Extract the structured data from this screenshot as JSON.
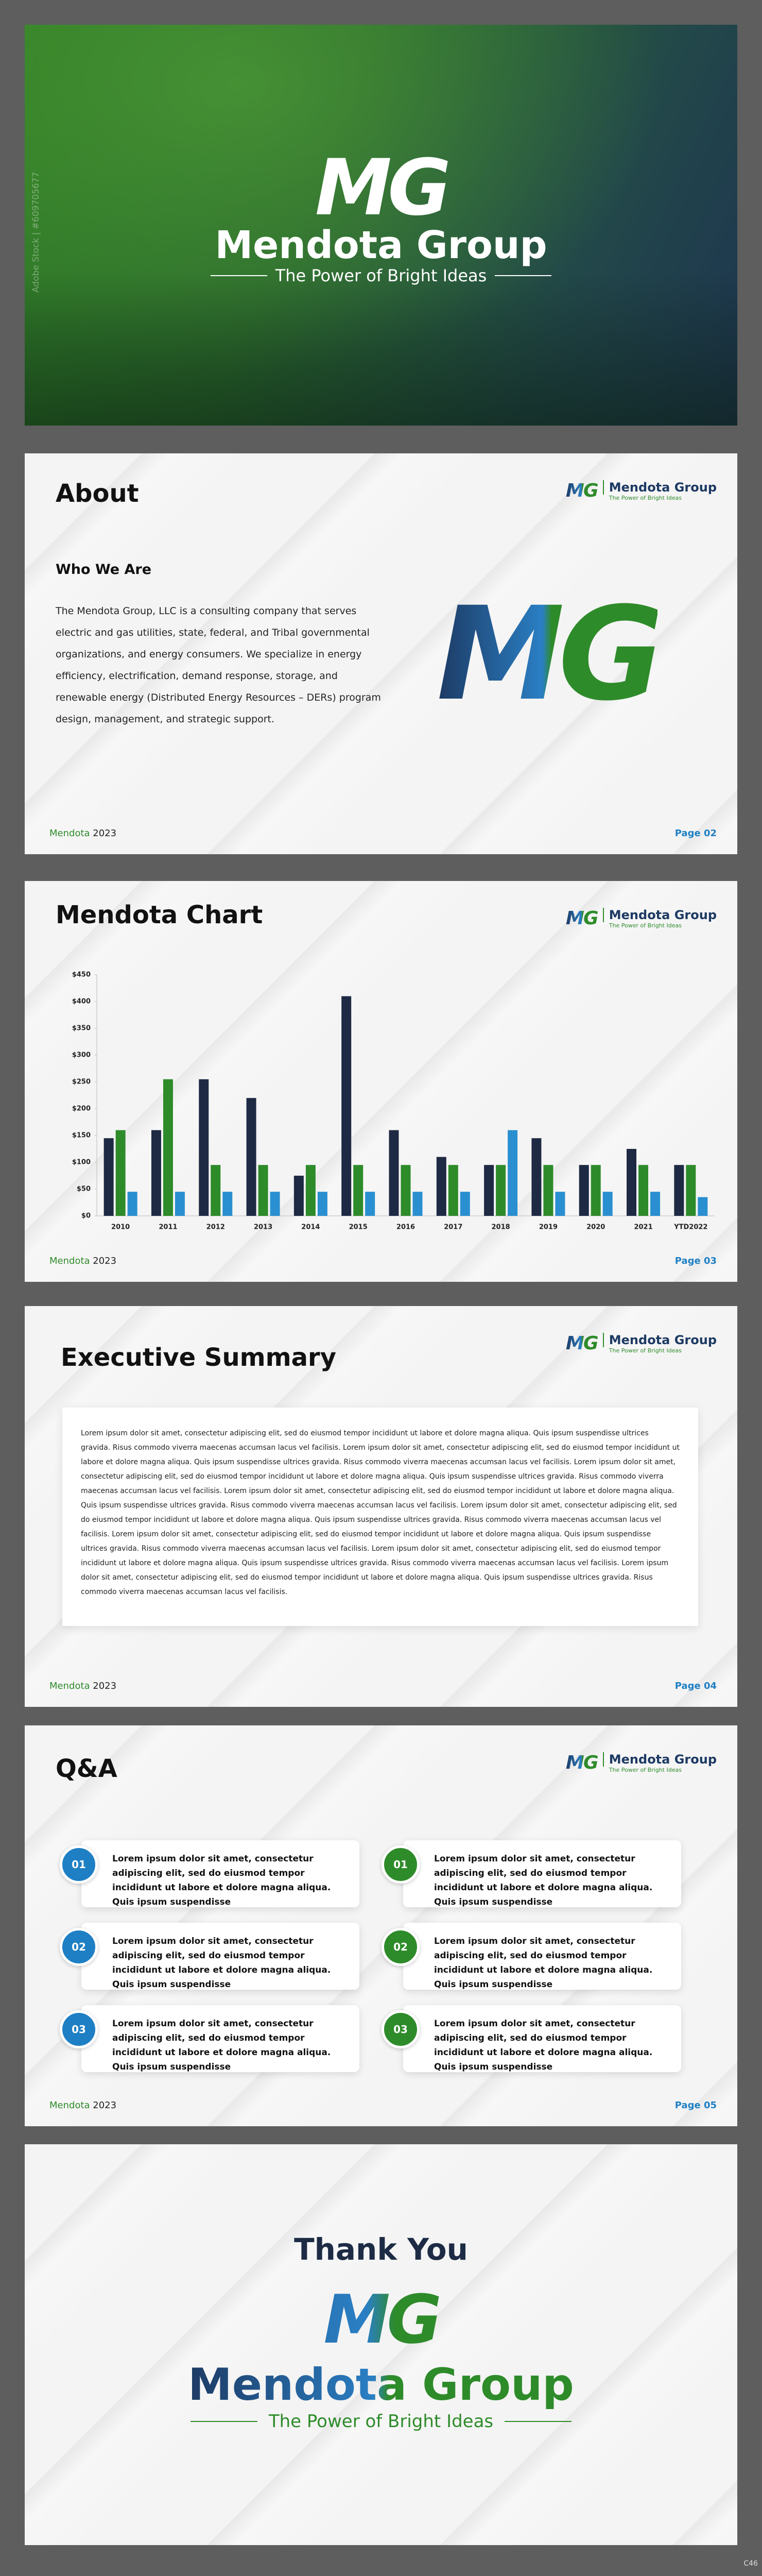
{
  "cover": {
    "logo": "MG",
    "title": "Mendota Group",
    "tagline": "The Power of Bright Ideas",
    "watermark": "Adobe Stock | #609705677"
  },
  "header_logo": {
    "logo": "MG",
    "name": "Mendota Group",
    "tagline": "The Power of Bright Ideas"
  },
  "footer": {
    "brand": "Mendota",
    "year": "2023"
  },
  "about": {
    "title": "About",
    "subtitle": "Who We Are",
    "body": "The Mendota Group, LLC is a consulting company that serves electric and gas utilities, state, federal, and Tribal governmental organizations, and energy consumers.  We specialize in energy efficiency, electrification, demand response, storage, and renewable energy (Distributed Energy Resources – DERs) program design, management, and strategic support.",
    "logo": "MG",
    "page": "Page 02"
  },
  "chart_slide": {
    "title": "Mendota Chart",
    "page": "Page 03"
  },
  "chart_data": {
    "type": "bar",
    "categories": [
      "2010",
      "2011",
      "2012",
      "2013",
      "2014",
      "2015",
      "2016",
      "2017",
      "2018",
      "2019",
      "2020",
      "2021",
      "YTD2022"
    ],
    "series": [
      {
        "color": "#1e2a44",
        "values": [
          145,
          160,
          255,
          220,
          75,
          410,
          160,
          110,
          95,
          145,
          95,
          125,
          95
        ]
      },
      {
        "color": "#2e8b2a",
        "values": [
          160,
          255,
          95,
          95,
          95,
          95,
          95,
          95,
          95,
          95,
          95,
          95,
          95
        ]
      },
      {
        "color": "#2a8fd0",
        "values": [
          45,
          45,
          45,
          45,
          45,
          45,
          45,
          45,
          160,
          45,
          45,
          45,
          35
        ]
      }
    ],
    "ylim": [
      0,
      450
    ],
    "yticks": [
      {
        "value": 0,
        "label": "$0"
      },
      {
        "value": 50,
        "label": "$50"
      },
      {
        "value": 100,
        "label": "$100"
      },
      {
        "value": 150,
        "label": "$150"
      },
      {
        "value": 200,
        "label": "$200"
      },
      {
        "value": 250,
        "label": "$250"
      },
      {
        "value": 300,
        "label": "$300"
      },
      {
        "value": 350,
        "label": "$350"
      },
      {
        "value": 400,
        "label": "$400"
      },
      {
        "value": 450,
        "label": "$450"
      }
    ],
    "grid": false
  },
  "summary": {
    "title": "Executive Summary",
    "body": "Lorem ipsum dolor sit amet, consectetur adipiscing elit, sed do eiusmod tempor incididunt ut labore et dolore magna aliqua. Quis ipsum suspendisse ultrices gravida. Risus commodo viverra maecenas accumsan lacus vel facilisis. Lorem ipsum dolor sit amet, consectetur adipiscing elit, sed do eiusmod tempor incididunt ut labore et dolore magna aliqua. Quis ipsum suspendisse ultrices gravida. Risus commodo viverra maecenas accumsan lacus vel facilisis. Lorem ipsum dolor sit amet, consectetur adipiscing elit, sed do eiusmod tempor incididunt ut labore et dolore magna aliqua. Quis ipsum suspendisse ultrices gravida. Risus commodo viverra maecenas accumsan lacus vel facilisis. Lorem ipsum dolor sit amet, consectetur adipiscing elit, sed do eiusmod tempor incididunt ut labore et dolore magna aliqua. Quis ipsum suspendisse ultrices gravida. Risus commodo viverra maecenas accumsan lacus vel facilisis. Lorem ipsum dolor sit amet, consectetur adipiscing elit, sed do eiusmod tempor incididunt ut labore et dolore magna aliqua. Quis ipsum suspendisse ultrices gravida. Risus commodo viverra maecenas accumsan lacus vel facilisis. Lorem ipsum dolor sit amet, consectetur adipiscing elit, sed do eiusmod tempor incididunt ut labore et dolore magna aliqua. Quis ipsum suspendisse ultrices gravida. Risus commodo viverra maecenas accumsan lacus vel facilisis. Lorem ipsum dolor sit amet, consectetur adipiscing elit, sed do eiusmod tempor incididunt ut labore et dolore magna aliqua. Quis ipsum suspendisse ultrices gravida. Risus commodo viverra maecenas accumsan lacus vel facilisis. Lorem ipsum dolor sit amet, consectetur adipiscing elit, sed do eiusmod tempor incididunt ut labore et dolore magna aliqua. Quis ipsum suspendisse ultrices gravida. Risus commodo viverra maecenas accumsan lacus vel facilisis.",
    "page": "Page 04"
  },
  "qa": {
    "title": "Q&A",
    "items": [
      {
        "number": "01",
        "text": "Lorem ipsum dolor sit amet, consectetur adipiscing elit, sed do eiusmod tempor incididunt ut labore et dolore magna aliqua. Quis ipsum suspendisse"
      },
      {
        "number": "02",
        "text": "Lorem ipsum dolor sit amet, consectetur adipiscing elit, sed do eiusmod tempor incididunt ut labore et dolore magna aliqua. Quis ipsum suspendisse"
      },
      {
        "number": "03",
        "text": "Lorem ipsum dolor sit amet, consectetur adipiscing elit, sed do eiusmod tempor incididunt ut labore et dolore magna aliqua. Quis ipsum suspendisse"
      },
      {
        "number": "01",
        "text": "Lorem ipsum dolor sit amet, consectetur adipiscing elit, sed do eiusmod tempor incididunt ut labore et dolore magna aliqua. Quis ipsum suspendisse"
      },
      {
        "number": "02",
        "text": "Lorem ipsum dolor sit amet, consectetur adipiscing elit, sed do eiusmod tempor incididunt ut labore et dolore magna aliqua. Quis ipsum suspendisse"
      },
      {
        "number": "03",
        "text": "Lorem ipsum dolor sit amet, consectetur adipiscing elit, sed do eiusmod tempor incididunt ut labore et dolore magna aliqua. Quis ipsum suspendisse"
      }
    ],
    "page": "Page 05"
  },
  "thanks": {
    "title": "Thank You",
    "logo": "MG",
    "name": "Mendota Group",
    "tagline": "The Power of Bright Ideas"
  },
  "corner": "C46"
}
